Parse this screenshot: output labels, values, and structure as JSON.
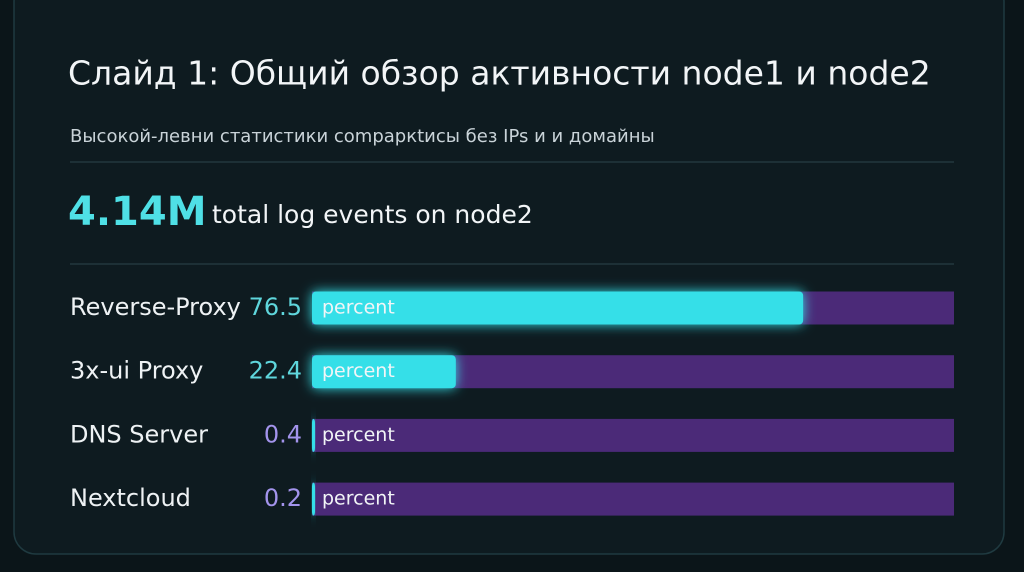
{
  "chart_data": {
    "type": "bar",
    "orientation": "horizontal",
    "title": "Слайд 1: Общий обзор активности node1 и node2",
    "subtitle": "Высокой-левни статистики compаркtисы без IPs и и домайны",
    "kpi": {
      "value": "4.14M",
      "label": "total log events on node2"
    },
    "categories": [
      "Reverse-Proxy",
      "3x-ui Proxy",
      "DNS Server",
      "Nextcloud"
    ],
    "values": [
      76.5,
      22.4,
      0.4,
      0.2
    ],
    "unit_label": "percent",
    "xlim": [
      0,
      100
    ],
    "color": "#35dfe8",
    "track_color": "#4b2a78",
    "value_label_colors": [
      "#5fd6dc",
      "#5fd6dc",
      "#a394ec",
      "#a394ec"
    ]
  }
}
